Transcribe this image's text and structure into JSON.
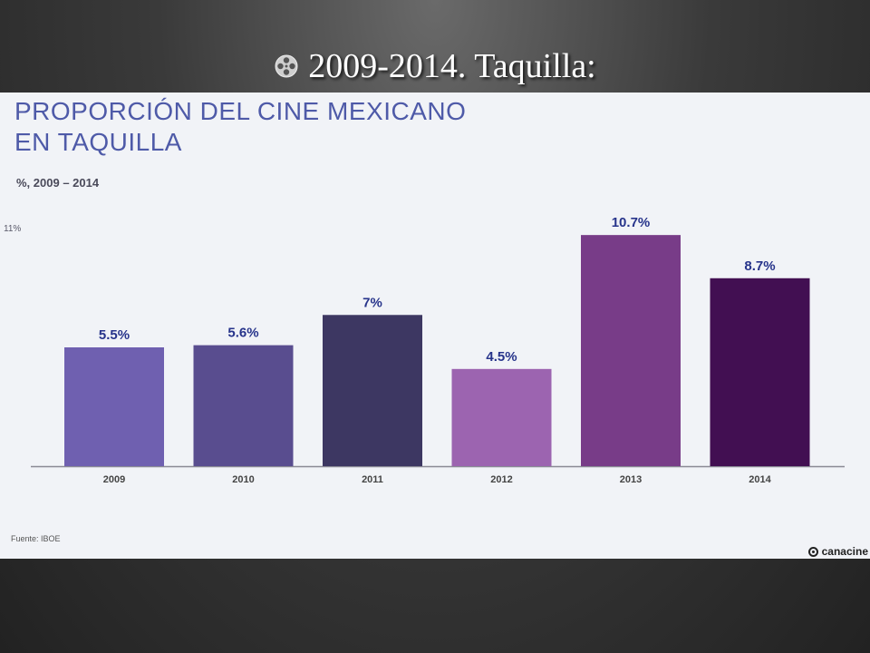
{
  "slide": {
    "title": "2009-2014. Taquilla:",
    "icon": "film-reel-icon"
  },
  "chart": {
    "title_line1": "PROPORCIÓN DEL CINE MEXICANO",
    "title_line2": "EN TAQUILLA",
    "subtitle": "%, 2009 – 2014",
    "ymax_label": "11%",
    "source": "Fuente: IBOE",
    "logo_text": "canacine"
  },
  "chart_data": {
    "type": "bar",
    "title": "PROPORCIÓN DEL CINE MEXICANO EN TAQUILLA",
    "subtitle": "%, 2009 – 2014",
    "categories": [
      "2009",
      "2010",
      "2011",
      "2012",
      "2013",
      "2014"
    ],
    "values": [
      5.5,
      5.6,
      7,
      4.5,
      10.7,
      8.7
    ],
    "value_labels": [
      "5.5%",
      "5.6%",
      "7%",
      "4.5%",
      "10.7%",
      "8.7%"
    ],
    "colors": [
      "#6f60b0",
      "#594d8f",
      "#3d3762",
      "#9c64b0",
      "#783c88",
      "#420f52"
    ],
    "label_color": "#27348b",
    "ylim": [
      0,
      11
    ],
    "grid": false,
    "legend": "none"
  }
}
